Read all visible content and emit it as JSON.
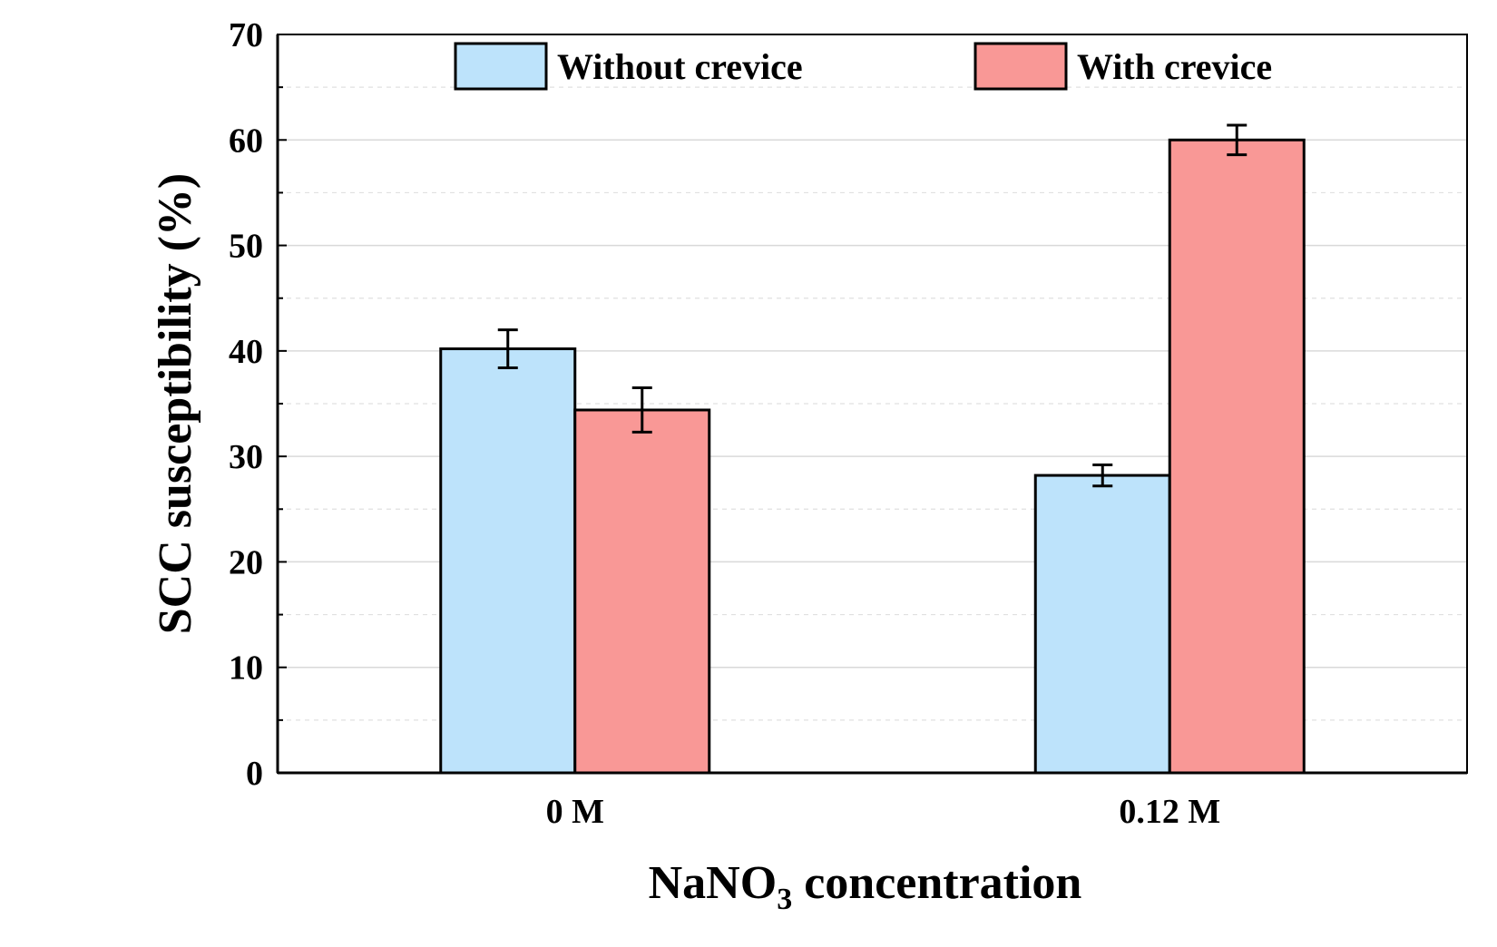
{
  "chart_data": {
    "type": "bar",
    "categories": [
      "0 M",
      "0.12 M"
    ],
    "series": [
      {
        "name": "Without crevice",
        "values": [
          40.2,
          28.2
        ],
        "errors": [
          1.8,
          1.0
        ],
        "color": "#bde3fb"
      },
      {
        "name": "With crevice",
        "values": [
          34.4,
          60.0
        ],
        "errors": [
          2.1,
          1.4
        ],
        "color": "#f99896"
      }
    ],
    "xlabel": {
      "main": "NaNO",
      "sub": "3",
      "rest": " concentration"
    },
    "ylabel": "SCC susceptibility (%)",
    "ylim": [
      0,
      70
    ],
    "yticks": [
      "0",
      "10",
      "20",
      "30",
      "40",
      "50",
      "60",
      "70"
    ],
    "grid": true,
    "legend_position": "top"
  }
}
